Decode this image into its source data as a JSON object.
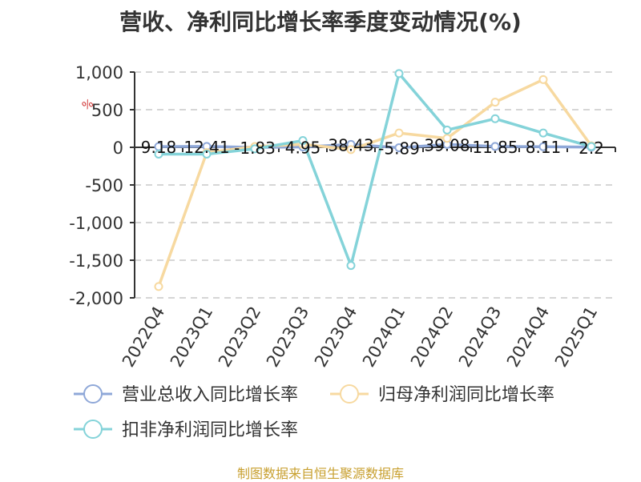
{
  "title": "营收、净利同比增长率季度变动情况(%)",
  "source": "制图数据来自恒生聚源数据库",
  "y_axis_unit": "%",
  "chart_data": {
    "type": "line",
    "title": "营收、净利同比增长率季度变动情况(%)",
    "categories": [
      "2022Q4",
      "2023Q1",
      "2023Q2",
      "2023Q3",
      "2023Q4",
      "2024Q1",
      "2024Q2",
      "2024Q3",
      "2024Q4",
      "2025Q1"
    ],
    "ylim": [
      -2000,
      1000
    ],
    "yticks": [
      1000,
      500,
      0,
      -500,
      -1000,
      -1500,
      -2000
    ],
    "ytick_labels": [
      "1,000",
      "500",
      "0",
      "-500",
      "-1,000",
      "-1,500",
      "-2,000"
    ],
    "grid": true,
    "legend_position": "bottom",
    "series": [
      {
        "name": "营业总收入同比增长率",
        "color": "#8fa8d8",
        "values": [
          9.18,
          12.41,
          -1.83,
          4.95,
          38.43,
          -5.89,
          39.08,
          11.85,
          8.11,
          2.2
        ],
        "labels": [
          "9.18",
          "12.41",
          "-1.83",
          "4.95",
          "38.43",
          "-5.89",
          "39.08",
          "11.85",
          "8.11",
          "2.2"
        ]
      },
      {
        "name": "归母净利润同比增长率",
        "color": "#f7d9a0",
        "values": [
          -1850,
          -70,
          10,
          40,
          -30,
          190,
          120,
          600,
          900,
          20
        ]
      },
      {
        "name": "扣非净利润同比增长率",
        "color": "#84d3d9",
        "values": [
          -90,
          -90,
          -20,
          90,
          -1570,
          980,
          230,
          380,
          190,
          10
        ]
      }
    ]
  }
}
